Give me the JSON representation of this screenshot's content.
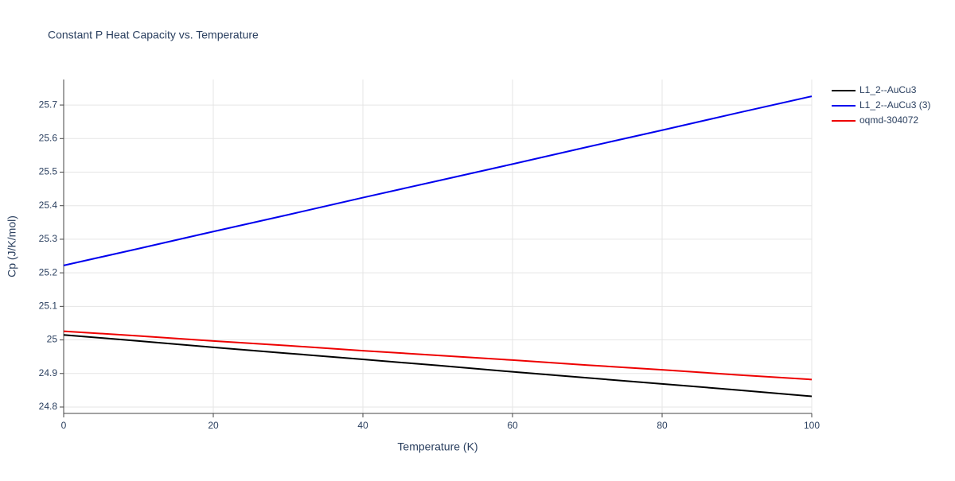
{
  "chart_data": {
    "type": "line",
    "title": "Constant P Heat Capacity vs. Temperature",
    "x_label": "Temperature (K)",
    "y_label": "Cp (J/K/mol)",
    "x": [
      0,
      10,
      20,
      30,
      40,
      50,
      60,
      70,
      80,
      90,
      100
    ],
    "series": [
      {
        "name": "L1_2--AuCu3",
        "color": "#000000",
        "values": [
          25.015,
          24.997,
          24.978,
          24.96,
          24.942,
          24.924,
          24.905,
          24.887,
          24.869,
          24.851,
          24.832
        ]
      },
      {
        "name": "L1_2--AuCu3 (3)",
        "color": "#0000ee",
        "values": [
          25.222,
          25.272,
          25.323,
          25.373,
          25.424,
          25.474,
          25.524,
          25.575,
          25.625,
          25.676,
          25.726
        ]
      },
      {
        "name": "oqmd-304072",
        "color": "#ee0000",
        "values": [
          25.026,
          25.012,
          24.997,
          24.983,
          24.968,
          24.954,
          24.94,
          24.925,
          24.911,
          24.896,
          24.882
        ]
      }
    ],
    "xlim": [
      0,
      100
    ],
    "xticks": [
      0,
      20,
      40,
      60,
      80,
      100
    ],
    "ylim": [
      24.781,
      25.776
    ],
    "yticks": [
      24.8,
      24.9,
      25,
      25.1,
      25.2,
      25.3,
      25.4,
      25.5,
      25.6,
      25.7
    ],
    "grid": true,
    "legend": "outside-right"
  }
}
